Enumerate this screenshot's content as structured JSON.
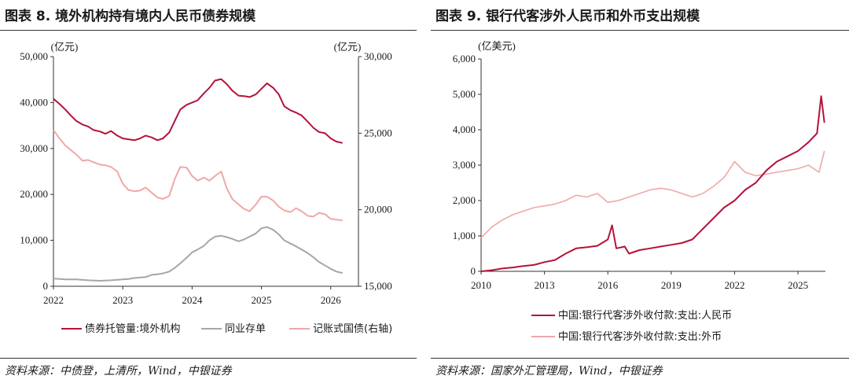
{
  "left": {
    "title": "图表 8. 境外机构持有境内人民币债券规模",
    "source": "资料来源：中债登，上清所，Wind，中银证券",
    "colors": {
      "custody": "#b5123a",
      "ncd": "#a6a6a6",
      "bookentry": "#f0a8a8"
    },
    "chart_data": {
      "type": "line",
      "title": "图表 8. 境外机构持有境内人民币债券规模",
      "left_unit": "(亿元)",
      "right_unit": "(亿元)",
      "y_left": {
        "min": 0,
        "max": 50000,
        "ticks": [
          0,
          10000,
          20000,
          30000,
          40000,
          50000
        ],
        "tick_labels": [
          "0",
          "10,000",
          "20,000",
          "30,000",
          "40,000",
          "50,000"
        ]
      },
      "y_right": {
        "min": 15000,
        "max": 30000,
        "ticks": [
          15000,
          20000,
          25000,
          30000
        ],
        "tick_labels": [
          "15,000",
          "20,000",
          "25,000",
          "30,000"
        ]
      },
      "x": {
        "min": 2022,
        "max": 2026.4,
        "ticks": [
          2022,
          2023,
          2024,
          2025,
          2026
        ],
        "tick_labels": [
          "2022",
          "2023",
          "2024",
          "2025",
          "2026"
        ]
      },
      "grid": false,
      "legend_position": "bottom",
      "series": [
        {
          "name": "债券托管量:境外机构",
          "axis": "left",
          "points": [
            [
              2022.0,
              40800
            ],
            [
              2022.08,
              39800
            ],
            [
              2022.17,
              38500
            ],
            [
              2022.25,
              37200
            ],
            [
              2022.33,
              36000
            ],
            [
              2022.42,
              35200
            ],
            [
              2022.5,
              34800
            ],
            [
              2022.58,
              34000
            ],
            [
              2022.67,
              33700
            ],
            [
              2022.75,
              33200
            ],
            [
              2022.83,
              33800
            ],
            [
              2022.92,
              32800
            ],
            [
              2023.0,
              32200
            ],
            [
              2023.08,
              32000
            ],
            [
              2023.17,
              31800
            ],
            [
              2023.25,
              32200
            ],
            [
              2023.33,
              32800
            ],
            [
              2023.42,
              32400
            ],
            [
              2023.5,
              31800
            ],
            [
              2023.58,
              32200
            ],
            [
              2023.67,
              33500
            ],
            [
              2023.75,
              36000
            ],
            [
              2023.83,
              38500
            ],
            [
              2023.92,
              39500
            ],
            [
              2024.0,
              40000
            ],
            [
              2024.08,
              40500
            ],
            [
              2024.17,
              42000
            ],
            [
              2024.25,
              43200
            ],
            [
              2024.33,
              44800
            ],
            [
              2024.42,
              45100
            ],
            [
              2024.5,
              44000
            ],
            [
              2024.58,
              42600
            ],
            [
              2024.67,
              41500
            ],
            [
              2024.75,
              41400
            ],
            [
              2024.83,
              41200
            ],
            [
              2024.92,
              41800
            ],
            [
              2025.0,
              43000
            ],
            [
              2025.08,
              44200
            ],
            [
              2025.17,
              43200
            ],
            [
              2025.25,
              41800
            ],
            [
              2025.33,
              39200
            ],
            [
              2025.42,
              38300
            ],
            [
              2025.5,
              37800
            ],
            [
              2025.58,
              37200
            ],
            [
              2025.67,
              35800
            ],
            [
              2025.75,
              34500
            ],
            [
              2025.83,
              33600
            ],
            [
              2025.92,
              33300
            ],
            [
              2026.0,
              32200
            ],
            [
              2026.08,
              31500
            ],
            [
              2026.17,
              31200
            ]
          ]
        },
        {
          "name": "同业存单",
          "axis": "left",
          "points": [
            [
              2022.0,
              1700
            ],
            [
              2022.17,
              1500
            ],
            [
              2022.33,
              1500
            ],
            [
              2022.5,
              1300
            ],
            [
              2022.67,
              1200
            ],
            [
              2022.83,
              1300
            ],
            [
              2023.0,
              1500
            ],
            [
              2023.08,
              1600
            ],
            [
              2023.17,
              1800
            ],
            [
              2023.33,
              2000
            ],
            [
              2023.42,
              2500
            ],
            [
              2023.5,
              2600
            ],
            [
              2023.58,
              2800
            ],
            [
              2023.67,
              3200
            ],
            [
              2023.75,
              4000
            ],
            [
              2023.83,
              5000
            ],
            [
              2023.92,
              6200
            ],
            [
              2024.0,
              7400
            ],
            [
              2024.08,
              8000
            ],
            [
              2024.17,
              8800
            ],
            [
              2024.25,
              10000
            ],
            [
              2024.33,
              10800
            ],
            [
              2024.42,
              11000
            ],
            [
              2024.5,
              10700
            ],
            [
              2024.58,
              10300
            ],
            [
              2024.67,
              9800
            ],
            [
              2024.75,
              10200
            ],
            [
              2024.83,
              10800
            ],
            [
              2024.92,
              11500
            ],
            [
              2025.0,
              12600
            ],
            [
              2025.08,
              12900
            ],
            [
              2025.17,
              12300
            ],
            [
              2025.25,
              11300
            ],
            [
              2025.33,
              10000
            ],
            [
              2025.42,
              9300
            ],
            [
              2025.5,
              8700
            ],
            [
              2025.58,
              8000
            ],
            [
              2025.67,
              7200
            ],
            [
              2025.75,
              6300
            ],
            [
              2025.83,
              5300
            ],
            [
              2025.92,
              4500
            ],
            [
              2026.0,
              3800
            ],
            [
              2026.08,
              3200
            ],
            [
              2026.17,
              2900
            ]
          ]
        },
        {
          "name": "记账式国债(右轴)",
          "axis": "right",
          "points": [
            [
              2022.0,
              25200
            ],
            [
              2022.08,
              24700
            ],
            [
              2022.17,
              24200
            ],
            [
              2022.25,
              23900
            ],
            [
              2022.33,
              23600
            ],
            [
              2022.42,
              23200
            ],
            [
              2022.5,
              23250
            ],
            [
              2022.58,
              23100
            ],
            [
              2022.67,
              22950
            ],
            [
              2022.75,
              22900
            ],
            [
              2022.83,
              22800
            ],
            [
              2022.92,
              22500
            ],
            [
              2023.0,
              21700
            ],
            [
              2023.08,
              21300
            ],
            [
              2023.17,
              21200
            ],
            [
              2023.25,
              21250
            ],
            [
              2023.33,
              21450
            ],
            [
              2023.42,
              21100
            ],
            [
              2023.5,
              20800
            ],
            [
              2023.58,
              20700
            ],
            [
              2023.67,
              20900
            ],
            [
              2023.75,
              22000
            ],
            [
              2023.83,
              22800
            ],
            [
              2023.92,
              22750
            ],
            [
              2024.0,
              22200
            ],
            [
              2024.08,
              21900
            ],
            [
              2024.17,
              22100
            ],
            [
              2024.25,
              21900
            ],
            [
              2024.33,
              22200
            ],
            [
              2024.42,
              22500
            ],
            [
              2024.5,
              21400
            ],
            [
              2024.58,
              20700
            ],
            [
              2024.67,
              20350
            ],
            [
              2024.75,
              20050
            ],
            [
              2024.83,
              19900
            ],
            [
              2024.92,
              20350
            ],
            [
              2025.0,
              20850
            ],
            [
              2025.08,
              20850
            ],
            [
              2025.17,
              20600
            ],
            [
              2025.25,
              20200
            ],
            [
              2025.33,
              19950
            ],
            [
              2025.42,
              19850
            ],
            [
              2025.5,
              20100
            ],
            [
              2025.58,
              19900
            ],
            [
              2025.67,
              19600
            ],
            [
              2025.75,
              19550
            ],
            [
              2025.83,
              19800
            ],
            [
              2025.92,
              19700
            ],
            [
              2026.0,
              19400
            ],
            [
              2026.08,
              19350
            ],
            [
              2026.17,
              19300
            ]
          ]
        }
      ]
    }
  },
  "right": {
    "title": "图表 9. 银行代客涉外人民币和外币支出规模",
    "source": "资料来源：国家外汇管理局，Wind，中银证券",
    "colors": {
      "rmb": "#b5123a",
      "fx": "#f0a8a8"
    },
    "chart_data": {
      "type": "line",
      "title": "图表 9. 银行代客涉外人民币和外币支出规模",
      "y_unit": "(亿美元)",
      "y": {
        "min": 0,
        "max": 6000,
        "ticks": [
          0,
          1000,
          2000,
          3000,
          4000,
          5000,
          6000
        ],
        "tick_labels": [
          "0",
          "1,000",
          "2,000",
          "3,000",
          "4,000",
          "5,000",
          "6,000"
        ]
      },
      "x": {
        "min": 2010,
        "max": 2026.3,
        "ticks": [
          2010,
          2013,
          2016,
          2019,
          2022,
          2025
        ],
        "tick_labels": [
          "2010",
          "2013",
          "2016",
          "2019",
          "2022",
          "2025"
        ]
      },
      "grid": false,
      "legend_position": "bottom",
      "series": [
        {
          "name": "中国:银行代客涉外收付款:支出:人民币",
          "axis": "left",
          "points": [
            [
              2010.0,
              0
            ],
            [
              2010.5,
              30
            ],
            [
              2011.0,
              80
            ],
            [
              2011.5,
              110
            ],
            [
              2012.0,
              150
            ],
            [
              2012.5,
              180
            ],
            [
              2013.0,
              260
            ],
            [
              2013.5,
              320
            ],
            [
              2014.0,
              500
            ],
            [
              2014.5,
              650
            ],
            [
              2015.0,
              680
            ],
            [
              2015.5,
              720
            ],
            [
              2016.0,
              900
            ],
            [
              2016.2,
              1300
            ],
            [
              2016.4,
              650
            ],
            [
              2016.8,
              700
            ],
            [
              2017.0,
              500
            ],
            [
              2017.5,
              600
            ],
            [
              2018.0,
              650
            ],
            [
              2018.5,
              700
            ],
            [
              2019.0,
              750
            ],
            [
              2019.5,
              800
            ],
            [
              2020.0,
              900
            ],
            [
              2020.5,
              1200
            ],
            [
              2021.0,
              1500
            ],
            [
              2021.5,
              1800
            ],
            [
              2022.0,
              2000
            ],
            [
              2022.5,
              2300
            ],
            [
              2023.0,
              2500
            ],
            [
              2023.5,
              2850
            ],
            [
              2024.0,
              3100
            ],
            [
              2024.5,
              3250
            ],
            [
              2025.0,
              3400
            ],
            [
              2025.5,
              3650
            ],
            [
              2025.9,
              3900
            ],
            [
              2026.1,
              4950
            ],
            [
              2026.25,
              4200
            ]
          ]
        },
        {
          "name": "中国:银行代客涉外收付款:支出:外币",
          "axis": "left",
          "points": [
            [
              2010.0,
              950
            ],
            [
              2010.5,
              1250
            ],
            [
              2011.0,
              1450
            ],
            [
              2011.5,
              1600
            ],
            [
              2012.0,
              1700
            ],
            [
              2012.5,
              1800
            ],
            [
              2013.0,
              1850
            ],
            [
              2013.5,
              1900
            ],
            [
              2014.0,
              2000
            ],
            [
              2014.5,
              2150
            ],
            [
              2015.0,
              2100
            ],
            [
              2015.5,
              2200
            ],
            [
              2016.0,
              1950
            ],
            [
              2016.5,
              2000
            ],
            [
              2017.0,
              2100
            ],
            [
              2017.5,
              2200
            ],
            [
              2018.0,
              2300
            ],
            [
              2018.5,
              2350
            ],
            [
              2019.0,
              2300
            ],
            [
              2019.5,
              2200
            ],
            [
              2020.0,
              2100
            ],
            [
              2020.5,
              2200
            ],
            [
              2021.0,
              2400
            ],
            [
              2021.5,
              2650
            ],
            [
              2022.0,
              3100
            ],
            [
              2022.5,
              2800
            ],
            [
              2023.0,
              2700
            ],
            [
              2023.5,
              2750
            ],
            [
              2024.0,
              2800
            ],
            [
              2024.5,
              2850
            ],
            [
              2025.0,
              2900
            ],
            [
              2025.5,
              3000
            ],
            [
              2026.0,
              2800
            ],
            [
              2026.25,
              3400
            ]
          ]
        }
      ]
    }
  }
}
